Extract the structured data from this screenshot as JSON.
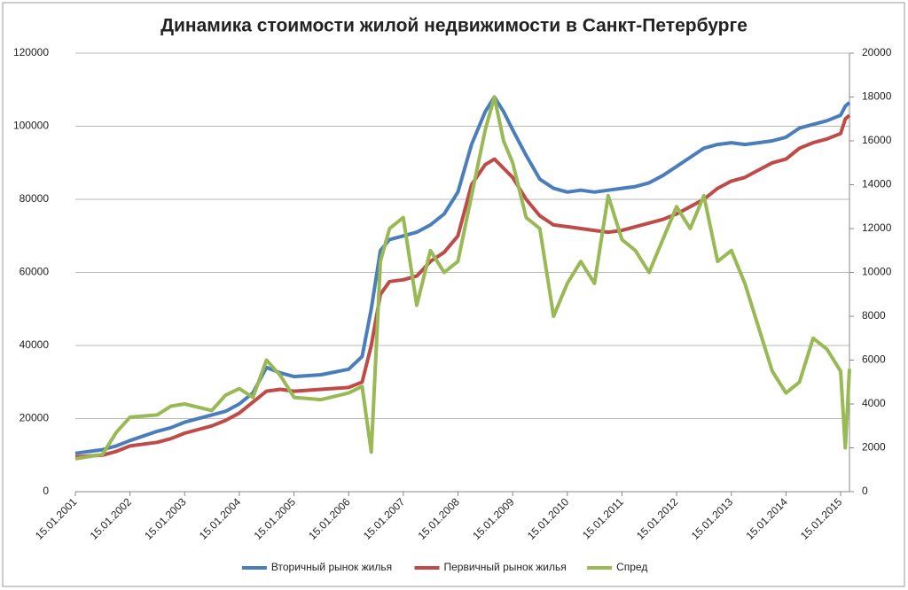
{
  "chart_data": {
    "type": "line",
    "title": "Динамика стоимости жилой недвижимости в Санкт-Петербурге",
    "x": [
      "15.01.2001",
      "15.07.2001",
      "15.10.2001",
      "15.01.2002",
      "15.07.2002",
      "15.10.2002",
      "15.01.2003",
      "15.07.2003",
      "15.10.2003",
      "15.01.2004",
      "15.04.2004",
      "15.07.2004",
      "15.10.2004",
      "15.01.2005",
      "15.07.2005",
      "15.01.2006",
      "15.04.2006",
      "15.06.2006",
      "15.08.2006",
      "15.10.2006",
      "15.01.2007",
      "15.04.2007",
      "15.07.2007",
      "15.10.2007",
      "15.01.2008",
      "15.04.2008",
      "15.07.2008",
      "15.09.2008",
      "15.11.2008",
      "15.01.2009",
      "15.04.2009",
      "15.07.2009",
      "15.10.2009",
      "15.01.2010",
      "15.04.2010",
      "15.07.2010",
      "15.10.2010",
      "15.01.2011",
      "15.04.2011",
      "15.07.2011",
      "15.10.2011",
      "15.01.2012",
      "15.04.2012",
      "15.07.2012",
      "15.10.2012",
      "15.01.2013",
      "15.04.2013",
      "15.07.2013",
      "15.10.2013",
      "15.01.2014",
      "15.04.2014",
      "15.07.2014",
      "15.10.2014",
      "15.01.2015",
      "15.02.2015",
      "15.03.2015"
    ],
    "series": [
      {
        "name": "Вторичный рынок жилья",
        "color": "#4a7ebb",
        "axis": "y",
        "values": [
          10500,
          11500,
          12500,
          14000,
          16500,
          17500,
          19000,
          21000,
          22000,
          24000,
          27000,
          34000,
          32500,
          31500,
          32000,
          33500,
          37000,
          50000,
          66000,
          69000,
          70000,
          71000,
          73000,
          76000,
          82000,
          95000,
          104000,
          108000,
          104000,
          99000,
          92000,
          85500,
          83000,
          82000,
          82500,
          82000,
          82500,
          83000,
          83500,
          84500,
          86500,
          89000,
          91500,
          94000,
          95000,
          95500,
          95000,
          95500,
          96000,
          97000,
          99500,
          100500,
          101500,
          103000,
          105500,
          106500
        ]
      },
      {
        "name": "Первичный рынок жилья",
        "color": "#be4b48",
        "axis": "y",
        "values": [
          9500,
          10000,
          11000,
          12500,
          13500,
          14500,
          16000,
          18000,
          19500,
          21500,
          24500,
          27500,
          28000,
          27500,
          28000,
          28500,
          30000,
          40000,
          54000,
          57500,
          58000,
          59000,
          63000,
          65500,
          70000,
          84000,
          89500,
          91000,
          88500,
          86000,
          80000,
          75500,
          73000,
          72500,
          72000,
          71500,
          71000,
          71500,
          72500,
          73500,
          74500,
          76000,
          78000,
          80000,
          83000,
          85000,
          86000,
          88000,
          90000,
          91000,
          94000,
          95500,
          96500,
          98000,
          102000,
          103000
        ]
      },
      {
        "name": "Спред",
        "color": "#98b954",
        "axis": "y2",
        "values": [
          1500,
          1700,
          2700,
          3400,
          3500,
          3900,
          4000,
          3700,
          4400,
          4700,
          4300,
          6000,
          5300,
          4300,
          4200,
          4500,
          4800,
          1800,
          10500,
          12000,
          12500,
          8500,
          11000,
          10000,
          10500,
          13500,
          16500,
          18000,
          16000,
          15000,
          12500,
          12000,
          8000,
          9500,
          10500,
          9500,
          13500,
          11500,
          11000,
          10000,
          11500,
          13000,
          12000,
          13500,
          10500,
          11000,
          9500,
          7500,
          5500,
          4500,
          5000,
          7000,
          6500,
          5500,
          2000,
          5600
        ]
      }
    ],
    "xlim": [
      "15.01.2001",
      "15.03.2015"
    ],
    "xticks": [
      "15.01.2001",
      "15.01.2002",
      "15.01.2003",
      "15.01.2004",
      "15.01.2005",
      "15.01.2006",
      "15.01.2007",
      "15.01.2008",
      "15.01.2009",
      "15.01.2010",
      "15.01.2011",
      "15.01.2012",
      "15.01.2013",
      "15.01.2014",
      "15.01.2015"
    ],
    "ylim": [
      0,
      120000
    ],
    "yticks": [
      0,
      20000,
      40000,
      60000,
      80000,
      100000,
      120000
    ],
    "y2lim": [
      0,
      20000
    ],
    "y2ticks": [
      0,
      2000,
      4000,
      6000,
      8000,
      10000,
      12000,
      14000,
      16000,
      18000,
      20000
    ],
    "grid": true,
    "legend": "bottom"
  }
}
